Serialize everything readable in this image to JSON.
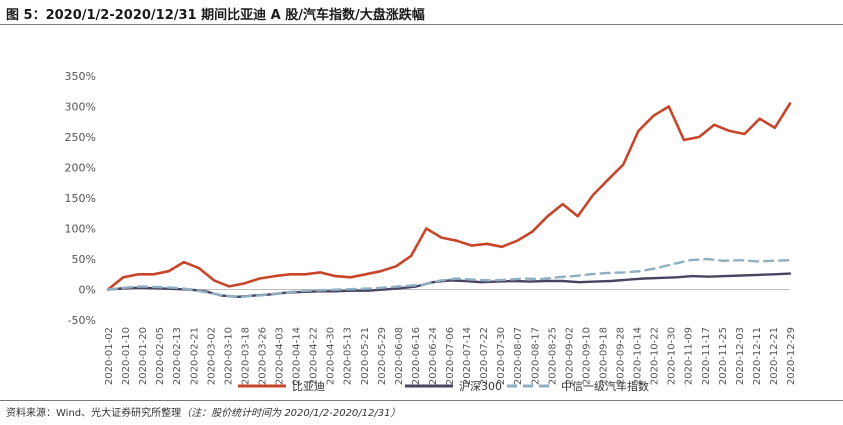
{
  "figure": {
    "title": "图 5：2020/1/2-2020/12/31 期间比亚迪 A 股/汽车指数/大盘涨跌幅",
    "source": "资料来源：Wind、光大证券研究所整理",
    "source_note": "（注：股价统计时间为 2020/1/2-2020/12/31）"
  },
  "chart_data": {
    "type": "line",
    "title": "",
    "xlabel": "",
    "ylabel": "",
    "ylim": [
      -50,
      350
    ],
    "yticks": [
      -50,
      0,
      50,
      100,
      150,
      200,
      250,
      300,
      350
    ],
    "ytick_labels": [
      "-50%",
      "0%",
      "50%",
      "100%",
      "150%",
      "200%",
      "250%",
      "300%",
      "350%"
    ],
    "x_tick_labels": [
      "2020-01-02",
      "2020-01-10",
      "2020-01-20",
      "2020-02-05",
      "2020-02-13",
      "2020-02-21",
      "2020-03-02",
      "2020-03-10",
      "2020-03-18",
      "2020-03-26",
      "2020-04-03",
      "2020-04-14",
      "2020-04-22",
      "2020-04-30",
      "2020-05-13",
      "2020-05-21",
      "2020-05-29",
      "2020-06-08",
      "2020-06-16",
      "2020-06-24",
      "2020-07-06",
      "2020-07-14",
      "2020-07-22",
      "2020-07-30",
      "2020-08-07",
      "2020-08-17",
      "2020-08-25",
      "2020-09-02",
      "2020-09-10",
      "2020-09-18",
      "2020-09-28",
      "2020-10-14",
      "2020-10-22",
      "2020-10-30",
      "2020-11-09",
      "2020-11-17",
      "2020-11-25",
      "2020-12-03",
      "2020-12-11",
      "2020-12-21",
      "2020-12-29"
    ],
    "legend_position": "bottom",
    "grid": false,
    "series": [
      {
        "name": "比亚迪",
        "color": "#C8452A",
        "style": "solid",
        "values": [
          0,
          20,
          25,
          25,
          30,
          45,
          35,
          15,
          5,
          10,
          18,
          22,
          25,
          25,
          28,
          22,
          20,
          25,
          30,
          38,
          55,
          100,
          85,
          80,
          72,
          75,
          70,
          80,
          95,
          120,
          140,
          120,
          155,
          180,
          205,
          260,
          285,
          300,
          245,
          250,
          270,
          260,
          255,
          280,
          265,
          305
        ]
      },
      {
        "name": "沪深300",
        "color": "#4A4462",
        "style": "solid",
        "values": [
          0,
          2,
          3,
          2,
          1,
          0,
          -3,
          -10,
          -12,
          -10,
          -8,
          -5,
          -4,
          -3,
          -3,
          -2,
          -2,
          0,
          2,
          5,
          12,
          15,
          14,
          12,
          13,
          14,
          13,
          14,
          14,
          12,
          13,
          14,
          16,
          18,
          19,
          20,
          22,
          21,
          22,
          23,
          24,
          25,
          26
        ]
      },
      {
        "name": "中信一级汽车指数",
        "color": "#8FB0C2",
        "style": "dashed",
        "values": [
          0,
          3,
          5,
          4,
          3,
          0,
          -5,
          -10,
          -12,
          -10,
          -7,
          -4,
          -2,
          -1,
          0,
          1,
          2,
          4,
          6,
          8,
          15,
          18,
          16,
          15,
          16,
          18,
          17,
          20,
          22,
          25,
          27,
          28,
          30,
          35,
          42,
          48,
          50,
          47,
          48,
          46,
          47,
          48
        ]
      }
    ]
  }
}
